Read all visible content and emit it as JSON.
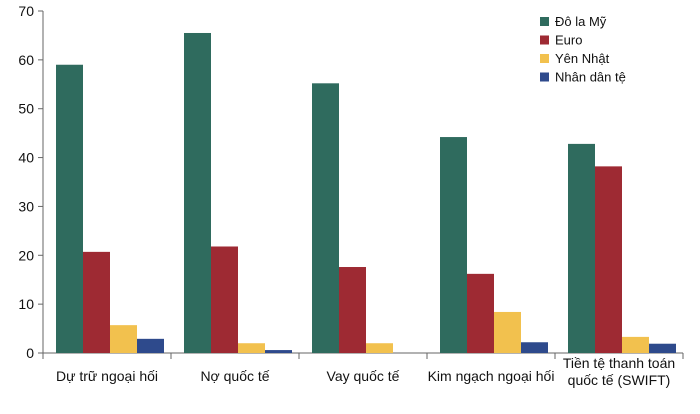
{
  "chart_data": {
    "type": "bar",
    "categories": [
      [
        "Dự trữ ngoại hối"
      ],
      [
        "Nợ quốc tế"
      ],
      [
        "Vay quốc tế"
      ],
      [
        "Kim ngạch ngoại hối"
      ],
      [
        "Tiền tệ thanh toán",
        "quốc tế (SWIFT)"
      ]
    ],
    "series": [
      {
        "name": "Đô la Mỹ",
        "color": "#2f6b5e",
        "values": [
          59,
          65.5,
          55.2,
          44.2,
          42.8
        ]
      },
      {
        "name": "Euro",
        "color": "#9e2a33",
        "values": [
          20.7,
          21.8,
          17.6,
          16.2,
          38.2
        ]
      },
      {
        "name": "Yên Nhật",
        "color": "#f2c14e",
        "values": [
          5.7,
          2.0,
          2.0,
          8.4,
          3.3
        ]
      },
      {
        "name": "Nhân dân tệ",
        "color": "#2e4a8c",
        "values": [
          2.9,
          0.6,
          0,
          2.2,
          1.9
        ]
      }
    ],
    "ylim": [
      0,
      70
    ],
    "yticks": [
      0,
      10,
      20,
      30,
      40,
      50,
      60,
      70
    ],
    "title": "",
    "xlabel": "",
    "ylabel": "",
    "legend": "top-right",
    "grid": false
  }
}
